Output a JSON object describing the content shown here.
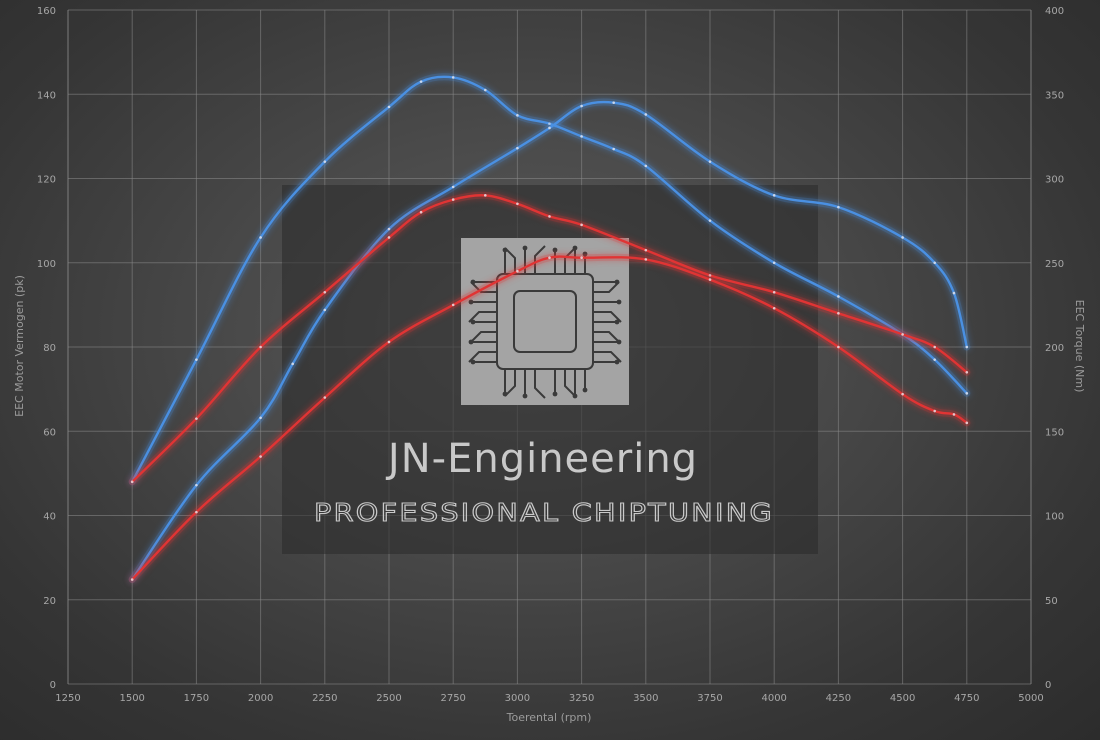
{
  "chart_data": {
    "type": "line",
    "xlabel": "Toerental (rpm)",
    "ylabel_left": "EEC Motor Vermogen (pk)",
    "ylabel_right": "EEC Torque (Nm)",
    "x_range": [
      1250,
      5000
    ],
    "x_ticks": [
      1250,
      1500,
      1750,
      2000,
      2250,
      2500,
      2750,
      3000,
      3250,
      3500,
      3750,
      4000,
      4250,
      4500,
      4750,
      5000
    ],
    "y_left_range": [
      0,
      160
    ],
    "y_left_ticks": [
      0,
      20,
      40,
      60,
      80,
      100,
      120,
      140,
      160
    ],
    "y_right_range": [
      0,
      400
    ],
    "y_right_ticks": [
      0,
      50,
      100,
      150,
      200,
      250,
      300,
      350,
      400
    ],
    "grid": true,
    "legend": "none",
    "series": [
      {
        "axis": "left",
        "color": "#4a90e2",
        "x": [
          1500,
          1750,
          2000,
          2250,
          2500,
          2625,
          2750,
          2875,
          3000,
          3125,
          3250,
          3375,
          3500,
          3750,
          4000,
          4250,
          4500,
          4625,
          4750
        ],
        "y": [
          48,
          77,
          106,
          124,
          137,
          143,
          144,
          141,
          135,
          133,
          130,
          127,
          123,
          110,
          100,
          92,
          83,
          77,
          69
        ]
      },
      {
        "axis": "right",
        "color": "#4a90e2",
        "x": [
          1500,
          1750,
          2000,
          2125,
          2250,
          2500,
          2750,
          3000,
          3125,
          3250,
          3375,
          3500,
          3750,
          4000,
          4250,
          4500,
          4625,
          4700,
          4750
        ],
        "y": [
          62,
          118,
          158,
          190,
          222,
          270,
          295,
          318,
          330,
          343,
          345,
          338,
          310,
          290,
          283,
          265,
          250,
          232,
          200
        ]
      },
      {
        "axis": "left",
        "color": "#e03434",
        "x": [
          1500,
          1750,
          2000,
          2250,
          2500,
          2625,
          2750,
          2875,
          3000,
          3125,
          3250,
          3500,
          3750,
          4000,
          4250,
          4500,
          4625,
          4750
        ],
        "y": [
          48,
          63,
          80,
          93,
          106,
          112,
          115,
          116,
          114,
          111,
          109,
          103,
          97,
          93,
          88,
          83,
          80,
          74
        ]
      },
      {
        "axis": "right",
        "color": "#e03434",
        "x": [
          1500,
          1750,
          2000,
          2250,
          2500,
          2750,
          3000,
          3125,
          3250,
          3500,
          3750,
          4000,
          4250,
          4500,
          4625,
          4700,
          4750
        ],
        "y": [
          62,
          102,
          135,
          170,
          203,
          225,
          245,
          253,
          253,
          252,
          240,
          223,
          200,
          172,
          162,
          160,
          155
        ]
      }
    ]
  },
  "watermark": {
    "title": "JN-Engineering",
    "subtitle": "PROFESSIONAL CHIPTUNING"
  }
}
